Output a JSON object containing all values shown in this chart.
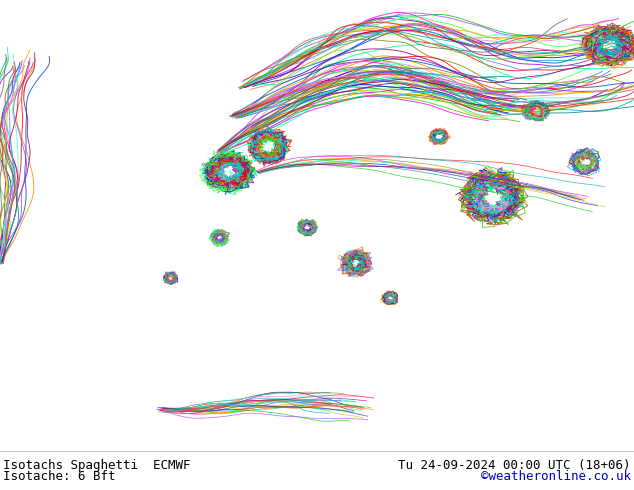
{
  "title_left": "Isotachs Spaghetti  ECMWF",
  "title_right": "Tu 24-09-2024 00:00 UTC (18+06)",
  "subtitle_left": "Isotache: 6 Bft",
  "subtitle_right": "©weatheronline.co.uk",
  "ocean_color": "#f0f0f0",
  "land_color_green": "#ccf0a0",
  "land_color_gray": "#c8c8c8",
  "border_color": "#909090",
  "text_color": "#000000",
  "link_color": "#0000cc",
  "font_size_title": 9,
  "font_size_subtitle": 9,
  "lon_min": 85,
  "lon_max": 215,
  "lat_min": -22,
  "lat_max": 67,
  "spaghetti_colors": [
    "#ff0000",
    "#00cc00",
    "#0000ff",
    "#ff8800",
    "#aa00aa",
    "#00aaaa",
    "#cccc00",
    "#ff00ff",
    "#00ff88",
    "#888800",
    "#008888",
    "#880088",
    "#ff4444",
    "#44ff44",
    "#4488ff",
    "#ffaa00",
    "#aa44ff",
    "#44ffcc",
    "#666666",
    "#ff88cc",
    "#cc4400",
    "#0044cc",
    "#44cc00",
    "#cc0044",
    "#00cccc"
  ]
}
